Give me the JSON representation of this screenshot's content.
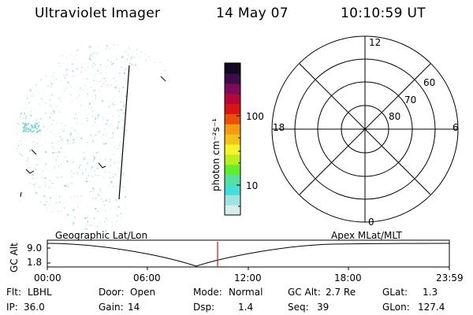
{
  "header": {
    "instrument": "Ultraviolet Imager",
    "date": "14 May 07",
    "time": "10:10:59 UT"
  },
  "colorbar": {
    "unit_label": "photon cm⁻²s⁻¹",
    "tick_100": "100",
    "tick_10": "10",
    "colors": [
      "#d8eeee",
      "#9fe3e3",
      "#46dcd8",
      "#58e0a0",
      "#64ec30",
      "#bfee20",
      "#f5f32a",
      "#f3c21b",
      "#f59a12",
      "#e8500c",
      "#d61616",
      "#b4083a",
      "#7c0c5a",
      "#3d0c4a",
      "#120a22"
    ]
  },
  "polar_plot": {
    "mlt_labels": {
      "top": "12",
      "bottom": "0",
      "left": "18",
      "right": "6"
    },
    "lat_labels": [
      "60",
      "70",
      "80"
    ]
  },
  "timeline": {
    "axis_label": "GC Alt",
    "y_labels": [
      "9.0",
      "1.8"
    ],
    "left_caption": "Geographic Lat/Lon",
    "right_caption": "Apex MLat/MLT",
    "time_ticks": [
      "00:00",
      "06:00",
      "12:00",
      "18:00",
      "23:59"
    ],
    "marker_color": "#e01010"
  },
  "status": {
    "row1": [
      {
        "label": "Flt:",
        "value": "LBHL"
      },
      {
        "label": "Door:",
        "value": "Open"
      },
      {
        "label": "Mode:",
        "value": "Normal"
      },
      {
        "label": "GC Alt:",
        "value": "2.7 Re"
      },
      {
        "label": "GLat:",
        "value": "1.3"
      }
    ],
    "row2": [
      {
        "label": "IP:",
        "value": "36.0"
      },
      {
        "label": "Gain:",
        "value": "14"
      },
      {
        "label": "Dsp:",
        "value": "1.4"
      },
      {
        "label": "Seq:",
        "value": "39"
      },
      {
        "label": "GLon:",
        "value": "127.4"
      }
    ]
  }
}
